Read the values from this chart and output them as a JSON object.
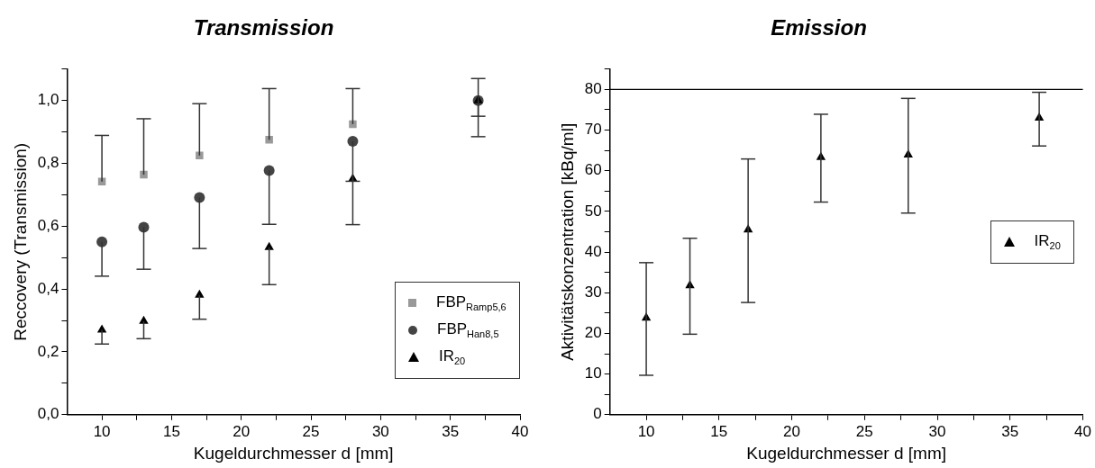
{
  "chart_data": [
    {
      "type": "scatter",
      "title": "Transmission",
      "xlabel": "Kugeldurchmesser d [mm]",
      "ylabel": "Reccovery (Transmission)",
      "xlim": [
        7.5,
        40
      ],
      "xticks": [
        10,
        {
          "value": 12.5,
          "label": null
        },
        15,
        {
          "value": 17.5,
          "label": null
        },
        20,
        {
          "value": 22.5,
          "label": null
        },
        25,
        {
          "value": 27.5,
          "label": null
        },
        30,
        {
          "value": 32.5,
          "label": null
        },
        35,
        {
          "value": 37.5,
          "label": null
        },
        40
      ],
      "ylim": [
        0,
        1.1
      ],
      "yticks": [
        {
          "value": 0,
          "label": "0,0"
        },
        {
          "value": 0.1,
          "label": null
        },
        {
          "value": 0.2,
          "label": "0,2"
        },
        {
          "value": 0.3,
          "label": null
        },
        {
          "value": 0.4,
          "label": "0,4"
        },
        {
          "value": 0.5,
          "label": null
        },
        {
          "value": 0.6,
          "label": "0,6"
        },
        {
          "value": 0.7,
          "label": null
        },
        {
          "value": 0.8,
          "label": "0,8"
        },
        {
          "value": 0.9,
          "label": null
        },
        {
          "value": 1.0,
          "label": "1,0"
        },
        {
          "value": 1.1,
          "label": null
        }
      ],
      "x": [
        10,
        13,
        17,
        22,
        28,
        37
      ],
      "series": [
        {
          "name": "FBP$_{Ramp5,6}$",
          "color": "#999999",
          "marker": "square",
          "values": [
            0.742,
            0.764,
            0.825,
            0.875,
            0.925,
            null
          ],
          "errors": [
            [
              0.742,
              0.889
            ],
            [
              0.764,
              0.942
            ],
            [
              0.825,
              0.99
            ],
            [
              0.875,
              1.038
            ],
            [
              0.925,
              1.038
            ],
            null
          ]
        },
        {
          "name": "FBP$_{Han8,5}$",
          "color": "#444444",
          "marker": "circle",
          "values": [
            0.55,
            0.597,
            0.691,
            0.777,
            0.87,
            1.0
          ],
          "errors": [
            [
              0.441,
              0.55
            ],
            [
              0.463,
              0.597
            ],
            [
              0.529,
              0.691
            ],
            [
              0.606,
              0.777
            ],
            [
              0.605,
              0.87
            ],
            [
              0.95,
              1.07
            ]
          ]
        },
        {
          "name": "IR$_{20}$",
          "color": "#000000",
          "marker": "triangle",
          "values": [
            0.27,
            0.298,
            0.381,
            0.533,
            0.751,
            1.0
          ],
          "errors": [
            [
              0.225,
              0.27
            ],
            [
              0.242,
              0.298
            ],
            [
              0.304,
              0.381
            ],
            [
              0.414,
              0.533
            ],
            [
              0.743,
              0.751
            ],
            [
              0.885,
              1.0
            ]
          ]
        }
      ],
      "legend": "bottom right",
      "grid": false
    },
    {
      "type": "scatter",
      "title": "Emission",
      "xlabel": "Kugeldurchmesser d [mm]",
      "ylabel": "Aktivitätskonzentration [kBq/ml]",
      "xlim": [
        7.5,
        40
      ],
      "xticks": [
        10,
        {
          "value": 12.5,
          "label": null
        },
        15,
        {
          "value": 17.5,
          "label": null
        },
        20,
        {
          "value": 22.5,
          "label": null
        },
        25,
        {
          "value": 27.5,
          "label": null
        },
        30,
        {
          "value": 32.5,
          "label": null
        },
        35,
        {
          "value": 37.5,
          "label": null
        },
        40
      ],
      "ylim": [
        0,
        85
      ],
      "yticks": [
        0,
        {
          "value": 5,
          "label": null
        },
        10,
        {
          "value": 15,
          "label": null
        },
        20,
        {
          "value": 25,
          "label": null
        },
        30,
        {
          "value": 35,
          "label": null
        },
        40,
        {
          "value": 45,
          "label": null
        },
        50,
        {
          "value": 55,
          "label": null
        },
        60,
        {
          "value": 65,
          "label": null
        },
        70,
        {
          "value": 75,
          "label": null
        },
        80,
        {
          "value": 85,
          "label": null
        }
      ],
      "x": [
        10,
        13,
        17,
        22,
        28,
        37
      ],
      "series": [
        {
          "name": "IR$_{20}$",
          "color": "#000000",
          "marker": "triangle",
          "values": [
            23.8,
            31.8,
            45.5,
            63.3,
            63.9,
            73.0
          ],
          "errors": [
            [
              9.7,
              37.4
            ],
            [
              19.8,
              43.4
            ],
            [
              27.6,
              62.9
            ],
            [
              52.3,
              73.9
            ],
            [
              49.6,
              77.8
            ],
            [
              66.1,
              79.3
            ]
          ]
        }
      ],
      "ref_lines": [
        {
          "axis": "y",
          "value": 80,
          "color": "#000000"
        }
      ],
      "legend": "right",
      "grid": false
    }
  ]
}
